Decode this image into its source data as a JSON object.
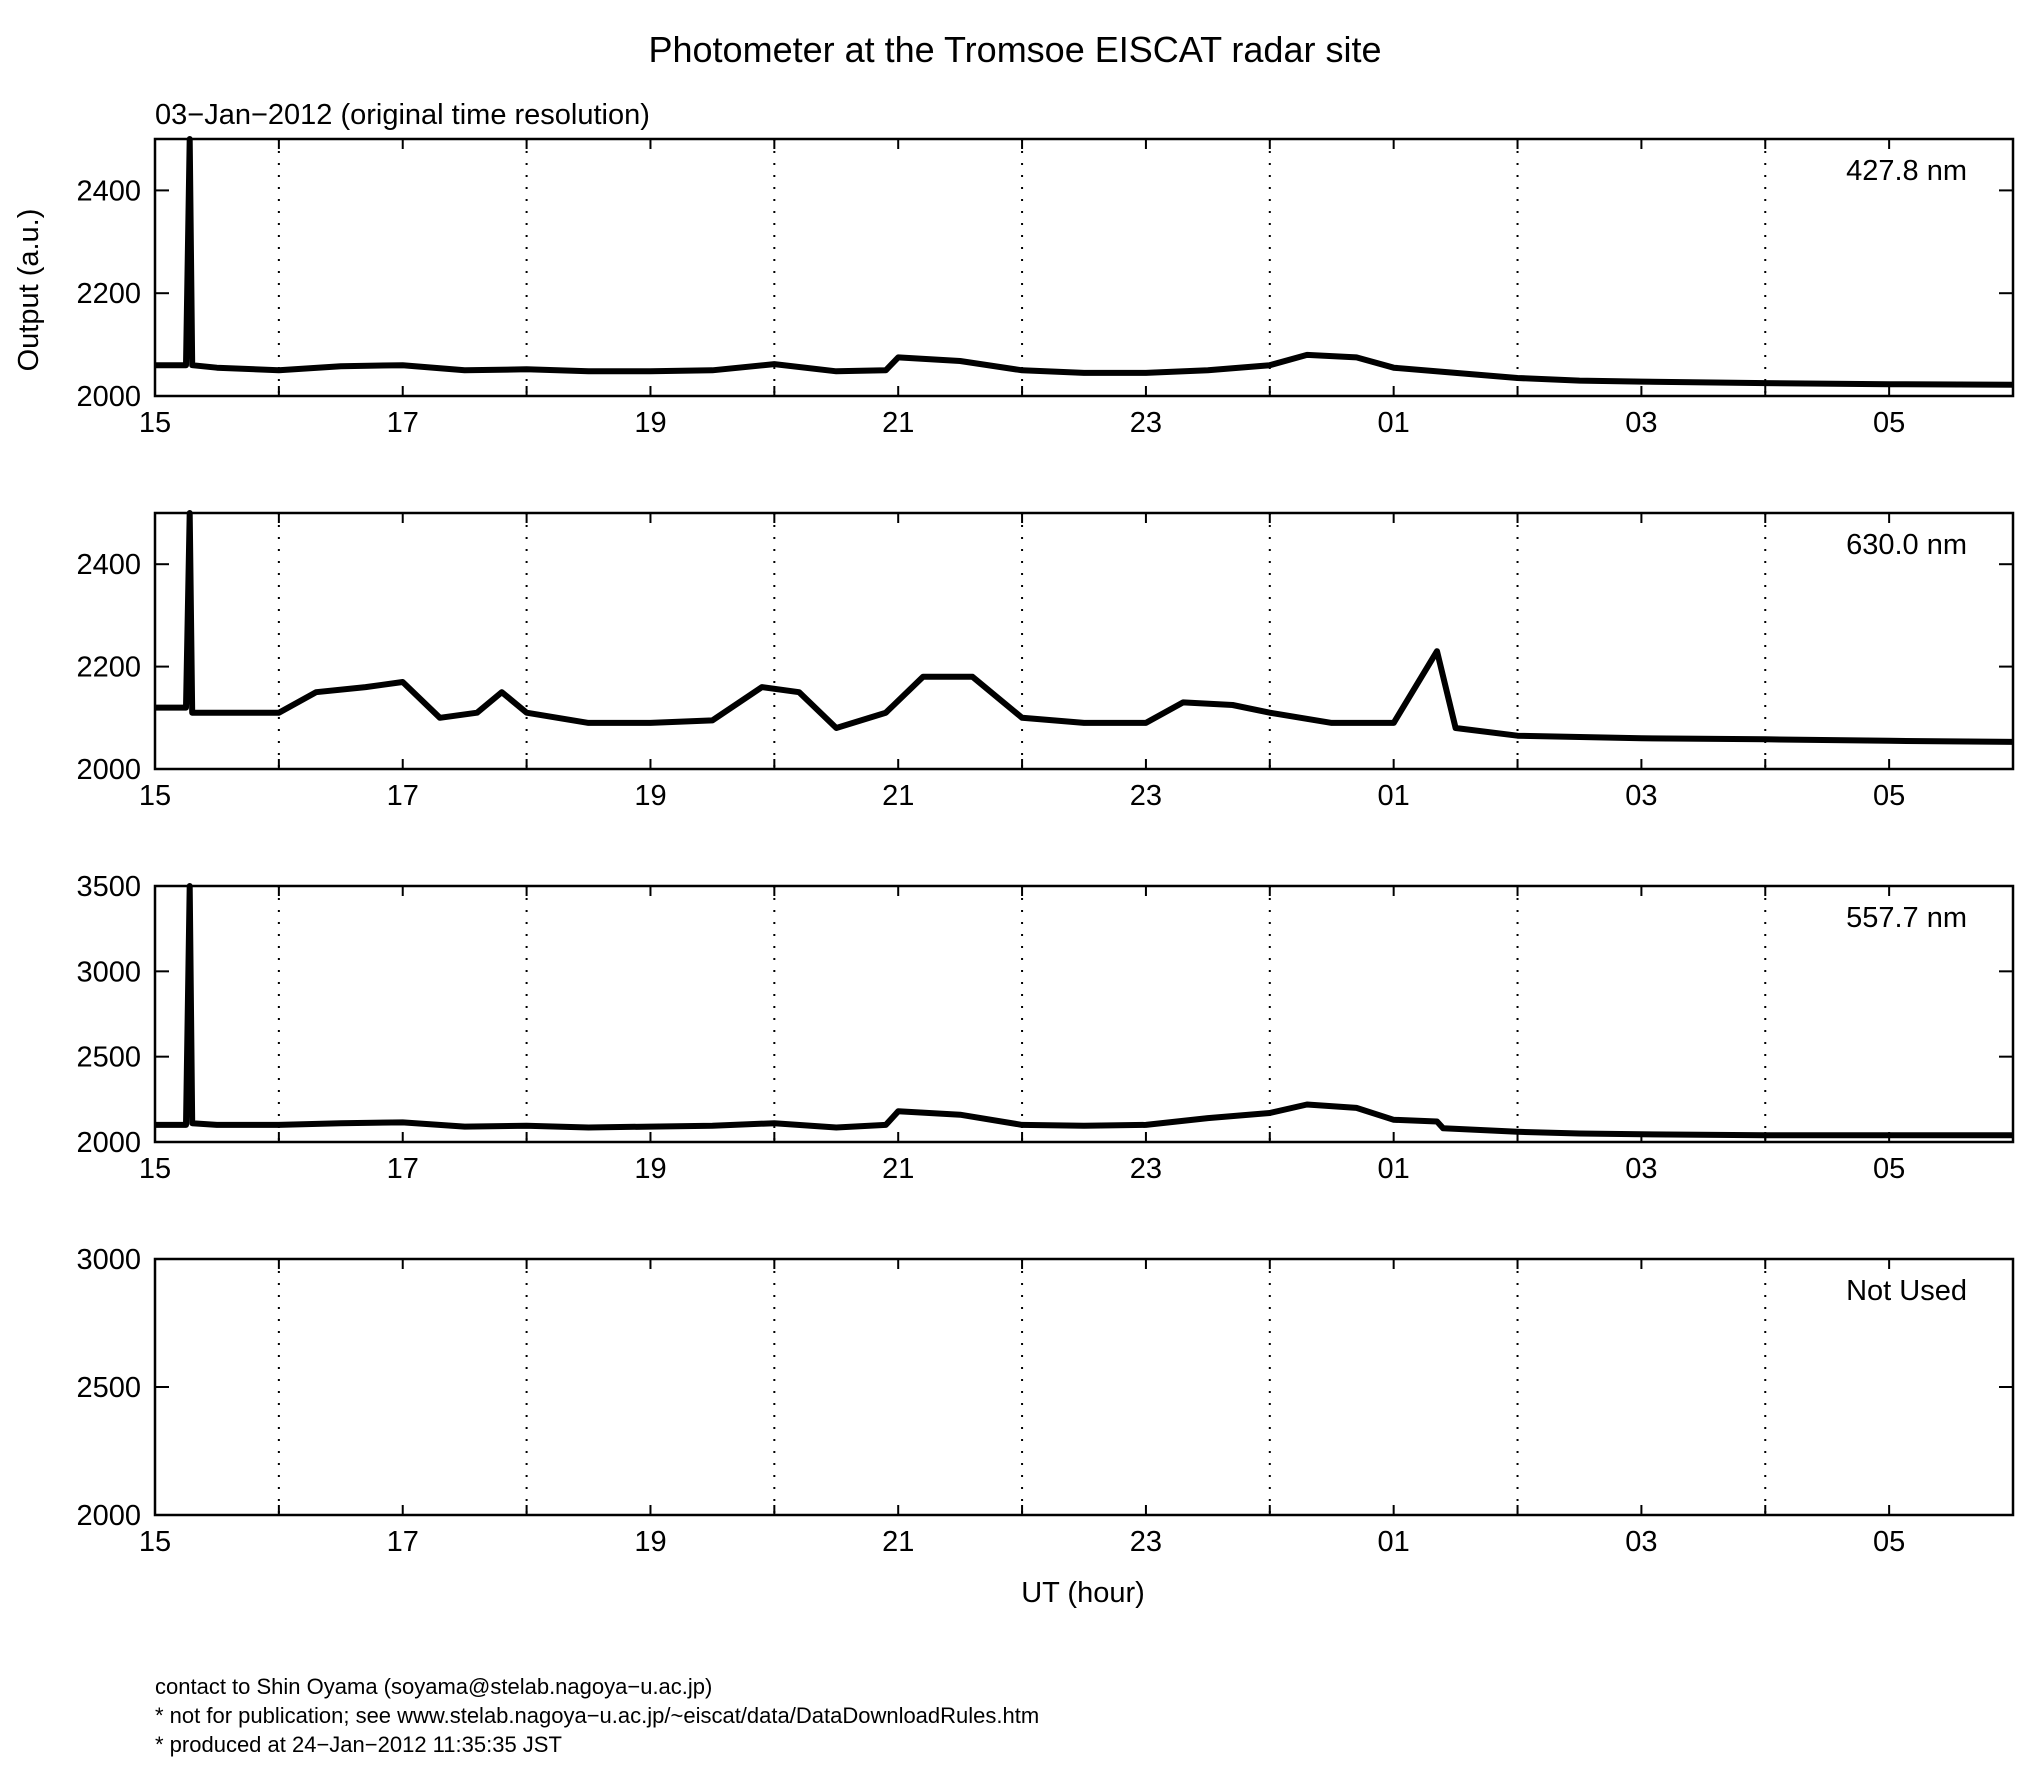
{
  "title": "Photometer at the Tromsoe EISCAT radar site",
  "subtitle": "03−Jan−2012 (original time resolution)",
  "ylabel": "Output (a.u.)",
  "xlabel": "UT (hour)",
  "footer": {
    "contact": "contact to Shin Oyama (soyama@stelab.nagoya−u.ac.jp)",
    "notice": "* not for publication; see www.stelab.nagoya−u.ac.jp/~eiscat/data/DataDownloadRules.htm",
    "produced": "* produced at 24−Jan−2012 11:35:35 JST"
  },
  "chart_data": [
    {
      "type": "line",
      "panel_label": "427.8 nm",
      "x_unit": "UT hour",
      "xlim": [
        15,
        30
      ],
      "ylim": [
        2000,
        2500
      ],
      "yticks": [
        2000,
        2200,
        2400
      ],
      "xtick_labels": [
        "15",
        "17",
        "19",
        "21",
        "23",
        "01",
        "03",
        "05"
      ],
      "x": [
        15,
        15.25,
        15.28,
        15.3,
        15.5,
        16,
        16.5,
        17,
        17.5,
        18,
        18.5,
        19,
        19.5,
        20,
        20.5,
        20.9,
        21,
        21.5,
        22,
        22.5,
        23,
        23.5,
        24,
        24.3,
        24.7,
        25,
        25.5,
        26,
        26.5,
        27,
        28,
        29,
        30
      ],
      "values": [
        2060,
        2060,
        2500,
        2060,
        2055,
        2050,
        2058,
        2060,
        2050,
        2052,
        2048,
        2048,
        2050,
        2062,
        2048,
        2050,
        2075,
        2068,
        2050,
        2045,
        2045,
        2050,
        2060,
        2080,
        2075,
        2055,
        2045,
        2035,
        2030,
        2028,
        2025,
        2023,
        2022
      ],
      "grid": "vertical-dotted"
    },
    {
      "type": "line",
      "panel_label": "630.0 nm",
      "x_unit": "UT hour",
      "xlim": [
        15,
        30
      ],
      "ylim": [
        2000,
        2500
      ],
      "yticks": [
        2000,
        2200,
        2400
      ],
      "xtick_labels": [
        "15",
        "17",
        "19",
        "21",
        "23",
        "01",
        "03",
        "05"
      ],
      "x": [
        15,
        15.25,
        15.28,
        15.3,
        15.5,
        16,
        16.3,
        16.7,
        17,
        17.3,
        17.6,
        17.8,
        18,
        18.5,
        19,
        19.5,
        19.9,
        20.2,
        20.5,
        20.9,
        21.2,
        21.6,
        22,
        22.5,
        23,
        23.3,
        23.7,
        24,
        24.5,
        25,
        25.35,
        25.5,
        26,
        27,
        28,
        29,
        30
      ],
      "values": [
        2120,
        2120,
        2500,
        2110,
        2110,
        2110,
        2150,
        2160,
        2170,
        2100,
        2110,
        2150,
        2110,
        2090,
        2090,
        2095,
        2160,
        2150,
        2080,
        2110,
        2180,
        2180,
        2100,
        2090,
        2090,
        2130,
        2125,
        2110,
        2090,
        2090,
        2230,
        2080,
        2065,
        2060,
        2058,
        2055,
        2053
      ],
      "grid": "vertical-dotted"
    },
    {
      "type": "line",
      "panel_label": "557.7 nm",
      "x_unit": "UT hour",
      "xlim": [
        15,
        30
      ],
      "ylim": [
        2000,
        3500
      ],
      "yticks": [
        2000,
        2500,
        3000,
        3500
      ],
      "xtick_labels": [
        "15",
        "17",
        "19",
        "21",
        "23",
        "01",
        "03",
        "05"
      ],
      "x": [
        15,
        15.25,
        15.28,
        15.3,
        15.5,
        16,
        16.5,
        17,
        17.5,
        18,
        18.5,
        19,
        19.5,
        20,
        20.5,
        20.9,
        21,
        21.5,
        22,
        22.5,
        23,
        23.5,
        24,
        24.3,
        24.7,
        25,
        25.35,
        25.4,
        26,
        26.5,
        27,
        28,
        29,
        30
      ],
      "values": [
        2100,
        2100,
        3500,
        2110,
        2100,
        2100,
        2110,
        2115,
        2090,
        2095,
        2085,
        2090,
        2095,
        2110,
        2085,
        2100,
        2180,
        2160,
        2100,
        2095,
        2100,
        2140,
        2170,
        2220,
        2200,
        2130,
        2120,
        2080,
        2060,
        2050,
        2045,
        2040,
        2040,
        2040
      ],
      "grid": "vertical-dotted"
    },
    {
      "type": "line",
      "panel_label": "Not Used",
      "x_unit": "UT hour",
      "xlim": [
        15,
        30
      ],
      "ylim": [
        2000,
        3000
      ],
      "yticks": [
        2000,
        2500,
        3000
      ],
      "xtick_labels": [
        "15",
        "17",
        "19",
        "21",
        "23",
        "01",
        "03",
        "05"
      ],
      "x": [],
      "values": [],
      "grid": "vertical-dotted"
    }
  ]
}
